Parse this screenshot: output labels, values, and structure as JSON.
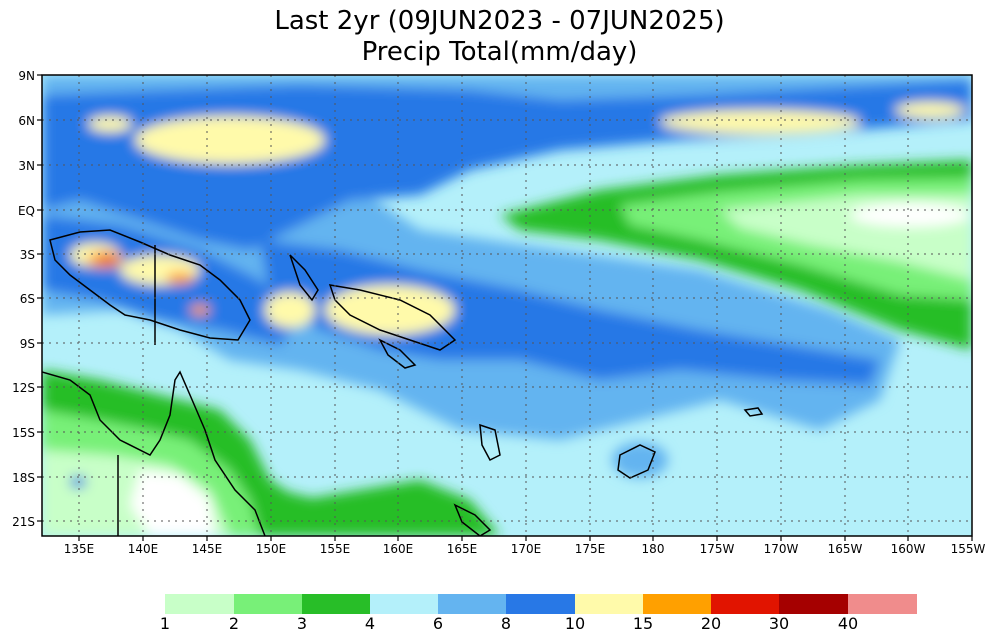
{
  "title_line1": "Last 2yr (09JUN2023 - 07JUN2025)",
  "title_line2": "Precip Total(mm/day)",
  "lat_labels": [
    "9N",
    "6N",
    "3N",
    "EQ",
    "3S",
    "6S",
    "9S",
    "12S",
    "15S",
    "18S",
    "21S"
  ],
  "lon_labels": [
    "135E",
    "140E",
    "145E",
    "150E",
    "155E",
    "160E",
    "165E",
    "170E",
    "175E",
    "180",
    "175W",
    "170W",
    "165W",
    "160W",
    "155W"
  ],
  "legend": {
    "colors": [
      "#c8ffc8",
      "#78f078",
      "#28be28",
      "#b4f0fa",
      "#64b4f0",
      "#2878e6",
      "#fffaaa",
      "#ffa000",
      "#e11400",
      "#a50000",
      "#f08c8c"
    ],
    "labels": [
      "1",
      "2",
      "3",
      "4",
      "6",
      "8",
      "10",
      "15",
      "20",
      "30",
      "40"
    ]
  }
}
